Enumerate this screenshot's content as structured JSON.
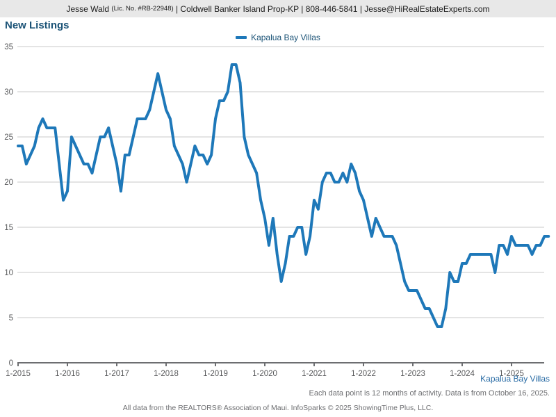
{
  "header": {
    "agent": "Jesse Wald",
    "license": "(Lic. No. #RB-22948)",
    "rest": "| Coldwell Banker Island Prop-KP | 808-446-5841 | Jesse@HiRealEstateExperts.com"
  },
  "title": "New Listings",
  "legend": {
    "label": "Kapalua Bay Villas"
  },
  "footer": {
    "series_label": "Kapalua Bay Villas",
    "note": "Each data point is 12 months of activity. Data is from October 16, 2025.",
    "attribution": "All data from the REALTORS® Association of Maui. InfoSparks © 2025 ShowingTime Plus, LLC."
  },
  "colors": {
    "line": "#1e78b9",
    "title_blue": "#1a5276",
    "header_bg": "#e8e8e8",
    "grid": "#c9c9c9",
    "axis": "#6d6e71",
    "axis_label": "#58595b",
    "note_gray": "#6d6e71"
  },
  "chart_data": {
    "type": "line",
    "title": "New Listings",
    "series": [
      {
        "name": "Kapalua Bay Villas",
        "start_month": "2015-01",
        "end_month": "2025-10",
        "values": [
          24,
          24,
          22,
          23,
          24,
          26,
          27,
          26,
          26,
          26,
          22,
          18,
          19,
          25,
          24,
          23,
          22,
          22,
          21,
          23,
          25,
          25,
          26,
          24,
          22,
          19,
          23,
          23,
          25,
          27,
          27,
          27,
          28,
          30,
          32,
          30,
          28,
          27,
          24,
          23,
          22,
          20,
          22,
          24,
          23,
          23,
          22,
          23,
          27,
          29,
          29,
          30,
          33,
          33,
          31,
          25,
          23,
          22,
          21,
          18,
          16,
          13,
          16,
          12,
          9,
          11,
          14,
          14,
          15,
          15,
          12,
          14,
          18,
          17,
          20,
          21,
          21,
          20,
          20,
          21,
          20,
          22,
          21,
          19,
          18,
          16,
          14,
          16,
          15,
          14,
          14,
          14,
          13,
          11,
          9,
          8,
          8,
          8,
          7,
          6,
          6,
          5,
          4,
          4,
          6,
          10,
          9,
          9,
          11,
          11,
          12,
          12,
          12,
          12,
          12,
          12,
          10,
          13,
          13,
          12,
          14,
          13,
          13,
          13,
          13,
          12,
          13,
          13,
          14,
          14
        ]
      }
    ],
    "x_tick_labels": [
      "1-2015",
      "1-2016",
      "1-2017",
      "1-2018",
      "1-2019",
      "1-2020",
      "1-2021",
      "1-2022",
      "1-2023",
      "1-2024",
      "1-2025"
    ],
    "months_per_tick": 12,
    "y_ticks": [
      0,
      5,
      10,
      15,
      20,
      25,
      30,
      35
    ],
    "ylim": [
      0,
      35
    ],
    "grid": "horizontal",
    "legend_position": "top-center",
    "note": "Each data point is 12 months of activity. Data is from October 16, 2025."
  }
}
